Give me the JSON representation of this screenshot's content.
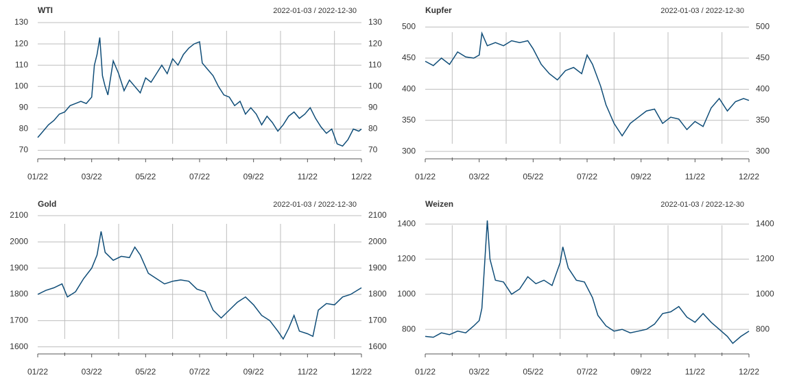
{
  "chart_data": [
    {
      "type": "line",
      "title": "WTI",
      "subtitle": "2022-01-03 / 2022-12-30",
      "color": "#0e4c77",
      "x": [
        0,
        0.2,
        0.4,
        0.6,
        0.8,
        1.0,
        1.2,
        1.4,
        1.6,
        1.8,
        2.0,
        2.1,
        2.2,
        2.3,
        2.4,
        2.5,
        2.6,
        2.8,
        3.0,
        3.2,
        3.4,
        3.6,
        3.8,
        4.0,
        4.2,
        4.4,
        4.6,
        4.8,
        5.0,
        5.2,
        5.4,
        5.6,
        5.8,
        6.0,
        6.1,
        6.3,
        6.5,
        6.7,
        6.9,
        7.1,
        7.3,
        7.5,
        7.7,
        7.9,
        8.1,
        8.3,
        8.5,
        8.7,
        8.9,
        9.1,
        9.3,
        9.5,
        9.7,
        9.9,
        10.1,
        10.3,
        10.5,
        10.7,
        10.9,
        11.1,
        11.3,
        11.5,
        11.7,
        11.9,
        12
      ],
      "values": [
        76,
        79,
        82,
        84,
        87,
        88,
        91,
        92,
        93,
        92,
        95,
        110,
        115,
        123,
        105,
        100,
        96,
        112,
        106,
        98,
        103,
        100,
        97,
        104,
        102,
        106,
        110,
        106,
        113,
        110,
        115,
        118,
        120,
        121,
        111,
        108,
        105,
        100,
        96,
        95,
        91,
        93,
        87,
        90,
        87,
        82,
        86,
        83,
        79,
        82,
        86,
        88,
        85,
        87,
        90,
        85,
        81,
        78,
        80,
        73,
        72,
        75,
        80,
        79,
        80
      ],
      "xlim": [
        0,
        12
      ],
      "xticks": [
        {
          "value": 0,
          "label": "01/22"
        },
        {
          "value": 2,
          "label": "03/22"
        },
        {
          "value": 4,
          "label": "05/22"
        },
        {
          "value": 6,
          "label": "07/22"
        },
        {
          "value": 8,
          "label": "09/22"
        },
        {
          "value": 10,
          "label": "11/22"
        },
        {
          "value": 12,
          "label": "12/22"
        }
      ],
      "xminor": [
        1,
        3,
        5,
        7,
        9,
        11
      ],
      "ylim": [
        66,
        130
      ],
      "yticks": [
        70,
        80,
        90,
        100,
        110,
        120,
        130
      ]
    },
    {
      "type": "line",
      "title": "Kupfer",
      "subtitle": "2022-01-03 / 2022-12-30",
      "color": "#0e4c77",
      "x": [
        0,
        0.3,
        0.6,
        0.9,
        1.2,
        1.5,
        1.8,
        2.0,
        2.1,
        2.3,
        2.6,
        2.9,
        3.2,
        3.5,
        3.8,
        4.0,
        4.3,
        4.6,
        4.9,
        5.2,
        5.5,
        5.8,
        6.0,
        6.2,
        6.5,
        6.7,
        7.0,
        7.3,
        7.6,
        7.9,
        8.2,
        8.5,
        8.8,
        9.1,
        9.4,
        9.7,
        10.0,
        10.3,
        10.6,
        10.9,
        11.2,
        11.5,
        11.8,
        12
      ],
      "values": [
        445,
        438,
        450,
        440,
        460,
        452,
        450,
        455,
        490,
        470,
        475,
        470,
        478,
        475,
        478,
        465,
        440,
        425,
        415,
        430,
        435,
        425,
        455,
        440,
        405,
        375,
        345,
        325,
        345,
        355,
        365,
        368,
        345,
        355,
        352,
        335,
        348,
        340,
        370,
        385,
        365,
        380,
        385,
        382
      ],
      "xlim": [
        0,
        12
      ],
      "xticks": [
        {
          "value": 0,
          "label": "01/22"
        },
        {
          "value": 2,
          "label": "03/22"
        },
        {
          "value": 4,
          "label": "05/22"
        },
        {
          "value": 6,
          "label": "07/22"
        },
        {
          "value": 8,
          "label": "09/22"
        },
        {
          "value": 10,
          "label": "11/22"
        },
        {
          "value": 12,
          "label": "12/22"
        }
      ],
      "xminor": [
        1,
        3,
        5,
        7,
        9,
        11
      ],
      "ylim": [
        288,
        505
      ],
      "yticks": [
        300,
        350,
        400,
        450,
        500
      ]
    },
    {
      "type": "line",
      "title": "Gold",
      "subtitle": "2022-01-03 / 2022-12-30",
      "color": "#0e4c77",
      "x": [
        0,
        0.3,
        0.6,
        0.9,
        1.1,
        1.4,
        1.7,
        2.0,
        2.2,
        2.35,
        2.5,
        2.8,
        3.1,
        3.4,
        3.6,
        3.8,
        4.1,
        4.4,
        4.7,
        5.0,
        5.3,
        5.6,
        5.9,
        6.2,
        6.5,
        6.8,
        7.1,
        7.4,
        7.7,
        8.0,
        8.3,
        8.6,
        8.9,
        9.1,
        9.3,
        9.5,
        9.7,
        10.0,
        10.2,
        10.4,
        10.7,
        11.0,
        11.3,
        11.6,
        12
      ],
      "values": [
        1800,
        1815,
        1825,
        1840,
        1790,
        1810,
        1860,
        1900,
        1950,
        2040,
        1960,
        1930,
        1945,
        1940,
        1980,
        1950,
        1880,
        1860,
        1840,
        1850,
        1855,
        1850,
        1820,
        1810,
        1740,
        1710,
        1740,
        1770,
        1790,
        1760,
        1720,
        1700,
        1660,
        1630,
        1670,
        1720,
        1660,
        1650,
        1640,
        1740,
        1765,
        1760,
        1790,
        1800,
        1825
      ],
      "xlim": [
        0,
        12
      ],
      "xticks": [
        {
          "value": 0,
          "label": "01/22"
        },
        {
          "value": 2,
          "label": "03/22"
        },
        {
          "value": 4,
          "label": "05/22"
        },
        {
          "value": 6,
          "label": "07/22"
        },
        {
          "value": 8,
          "label": "09/22"
        },
        {
          "value": 10,
          "label": "11/22"
        },
        {
          "value": 12,
          "label": "12/22"
        }
      ],
      "xminor": [
        1,
        3,
        5,
        7,
        9,
        11
      ],
      "ylim": [
        1573,
        2100
      ],
      "yticks": [
        1600,
        1700,
        1800,
        1900,
        2000,
        2100
      ]
    },
    {
      "type": "line",
      "title": "Weizen",
      "subtitle": "2022-01-03 / 2022-12-30",
      "color": "#0e4c77",
      "x": [
        0,
        0.3,
        0.6,
        0.9,
        1.2,
        1.5,
        1.8,
        2.0,
        2.1,
        2.3,
        2.4,
        2.6,
        2.9,
        3.2,
        3.5,
        3.8,
        4.1,
        4.4,
        4.7,
        5.0,
        5.1,
        5.3,
        5.6,
        5.9,
        6.2,
        6.4,
        6.7,
        7.0,
        7.3,
        7.6,
        7.9,
        8.2,
        8.5,
        8.8,
        9.1,
        9.4,
        9.7,
        10.0,
        10.3,
        10.6,
        10.9,
        11.2,
        11.4,
        11.7,
        12
      ],
      "values": [
        760,
        755,
        780,
        770,
        790,
        780,
        820,
        850,
        920,
        1420,
        1200,
        1080,
        1070,
        1000,
        1030,
        1100,
        1060,
        1080,
        1050,
        1180,
        1270,
        1150,
        1080,
        1070,
        980,
        880,
        820,
        790,
        800,
        780,
        790,
        800,
        830,
        890,
        900,
        930,
        870,
        840,
        890,
        840,
        800,
        760,
        720,
        760,
        790
      ],
      "xlim": [
        0,
        12
      ],
      "xticks": [
        {
          "value": 0,
          "label": "01/22"
        },
        {
          "value": 2,
          "label": "03/22"
        },
        {
          "value": 4,
          "label": "05/22"
        },
        {
          "value": 6,
          "label": "07/22"
        },
        {
          "value": 8,
          "label": "09/22"
        },
        {
          "value": 10,
          "label": "11/22"
        },
        {
          "value": 12,
          "label": "12/22"
        }
      ],
      "xminor": [
        1,
        3,
        5,
        7,
        9,
        11
      ],
      "ylim": [
        660,
        1440
      ],
      "yticks": [
        800,
        1000,
        1200,
        1400
      ]
    }
  ]
}
